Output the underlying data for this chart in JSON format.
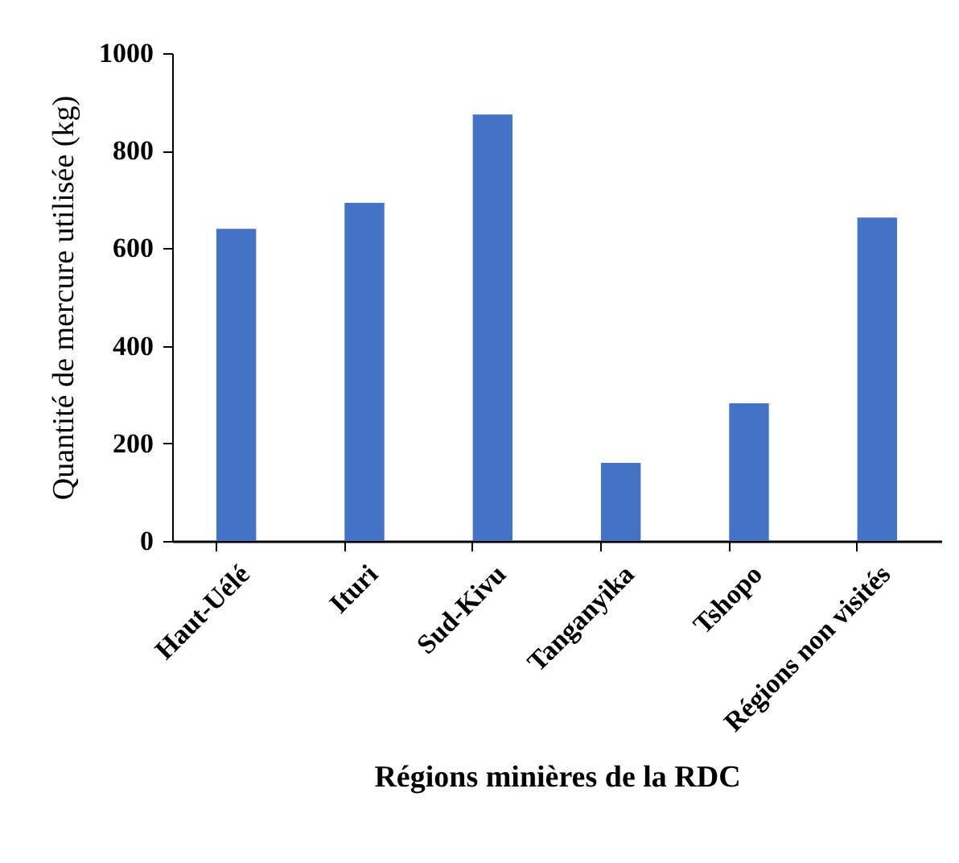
{
  "chart_data": {
    "type": "bar",
    "xlabel": "Régions minières de la RDC",
    "ylabel": "Quantité de mercure utilisée (kg)",
    "categories": [
      "Haut-Uélé",
      "Ituri",
      "Sud-Kivu",
      "Tanganyika",
      "Tshopo",
      "Régions non visités"
    ],
    "values": [
      640,
      693,
      874,
      160,
      282,
      663
    ],
    "color": "#4472c4",
    "ylim": [
      0,
      1000
    ],
    "yticks": [
      0,
      200,
      400,
      600,
      800,
      1000
    ],
    "grid": false
  }
}
